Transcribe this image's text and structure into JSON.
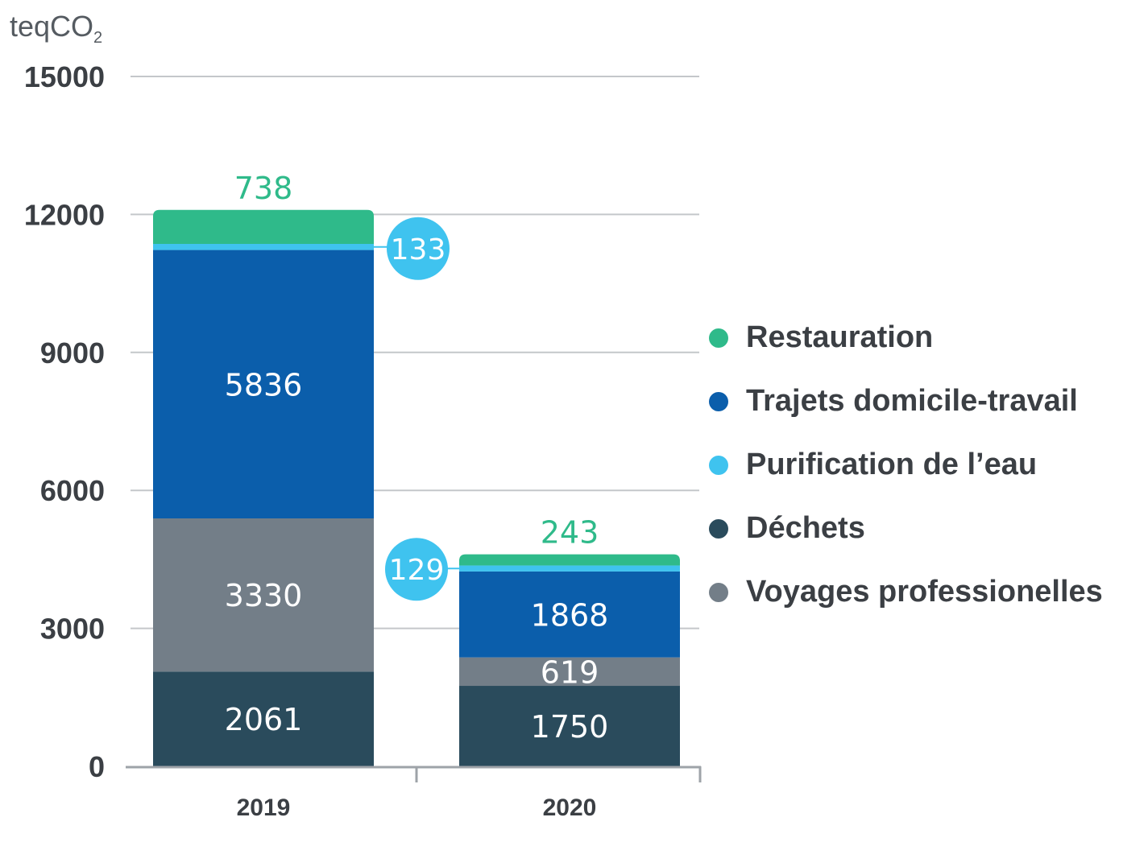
{
  "chart_data": {
    "type": "bar",
    "stacked": true,
    "unit": {
      "base": "teqCO",
      "subscript": "2"
    },
    "categories": [
      "2019",
      "2020"
    ],
    "ylim": [
      0,
      15000
    ],
    "yticks": [
      "0",
      "3000",
      "6000",
      "9000",
      "12000",
      "15000"
    ],
    "grid": true,
    "legend_position": "right",
    "series": [
      {
        "name": "Déchets",
        "color": "#2a4b5c",
        "values": [
          2061,
          1750
        ],
        "labels": [
          "2061",
          "1750"
        ],
        "label_color": "#ffffff"
      },
      {
        "name": "Voyages professionelles",
        "color": "#737e88",
        "values": [
          3330,
          619
        ],
        "labels": [
          "3330",
          "619"
        ],
        "label_color": "#ffffff"
      },
      {
        "name": "Trajets domicile-travail",
        "color": "#0b5eab",
        "values": [
          5836,
          1868
        ],
        "labels": [
          "5836",
          "1868"
        ],
        "label_color": "#ffffff"
      },
      {
        "name": "Purification de l’eau",
        "color": "#3fc3ef",
        "values": [
          133,
          129
        ],
        "labels": [
          "133",
          "129"
        ],
        "label_color": "#ffffff"
      },
      {
        "name": "Restauration",
        "color": "#2fba8a",
        "values": [
          738,
          243
        ],
        "labels": [
          "738",
          "243"
        ],
        "label_color": "#2fba8a"
      }
    ],
    "legend": [
      "Restauration",
      "Trajets domicile-travail",
      "Purification de l’eau",
      "Déchets",
      "Voyages professionelles"
    ]
  }
}
